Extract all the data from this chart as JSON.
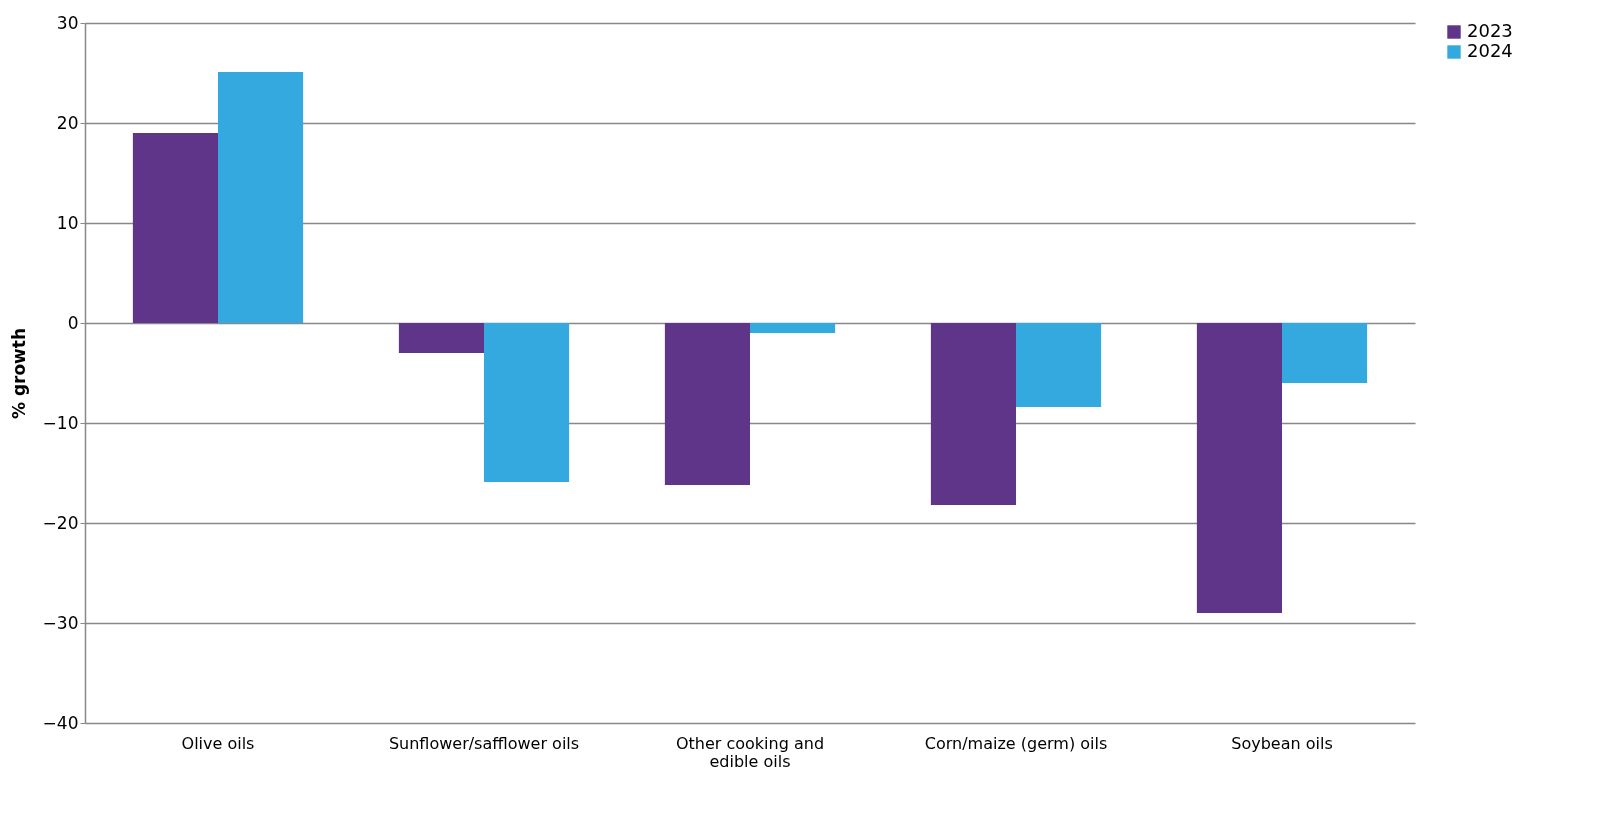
{
  "chart_data": {
    "type": "bar",
    "ylabel": "% growth",
    "categories": [
      "Olive oils",
      "Sunflower/safflower oils",
      "Other cooking and edible oils",
      "Corn/maize (germ) oils",
      "Soybean oils"
    ],
    "series": [
      {
        "name": "2023",
        "color": "#5e3589",
        "values": [
          19,
          -3,
          -16.2,
          -18.2,
          -29
        ]
      },
      {
        "name": "2024",
        "color": "#33a9df",
        "values": [
          25.1,
          -15.9,
          -1,
          -8.4,
          -6
        ]
      }
    ],
    "ylim": [
      -40,
      30
    ],
    "yticks": [
      -40,
      -30,
      -20,
      -10,
      0,
      10,
      20,
      30
    ],
    "grid": "y",
    "legend": "right"
  }
}
